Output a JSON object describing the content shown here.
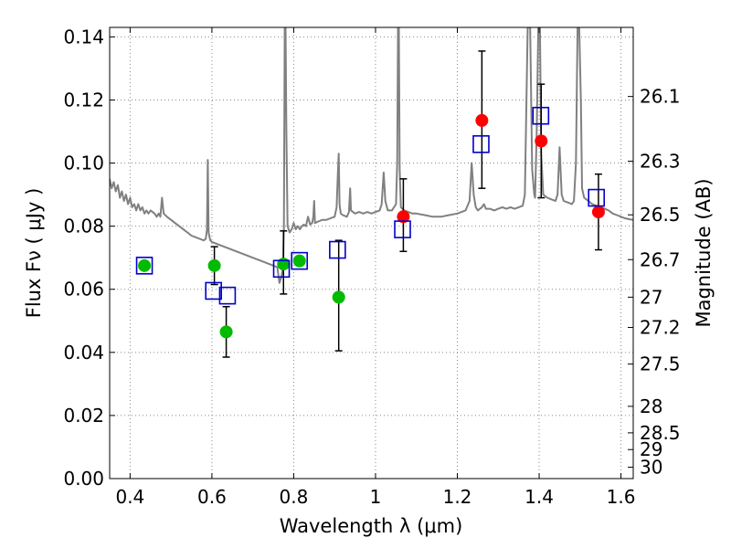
{
  "chart_data": {
    "type": "scatter",
    "title": "",
    "xlabel": "Wavelength  λ (μm)",
    "ylabel": "Flux  Fν  ( μJy )",
    "y2label": "Magnitude (AB)",
    "xlim": [
      0.35,
      1.63
    ],
    "ylim": [
      0.0,
      0.143
    ],
    "grid": true,
    "x_ticks": [
      0.4,
      0.6,
      0.8,
      1.0,
      1.2,
      1.4,
      1.6
    ],
    "x_tick_labels": [
      "0.4",
      "0.6",
      "0.8",
      "1",
      "1.2",
      "1.4",
      "1.6"
    ],
    "y_ticks": [
      0.0,
      0.02,
      0.04,
      0.06,
      0.08,
      0.1,
      0.12,
      0.14
    ],
    "y_tick_labels": [
      "0.00",
      "0.02",
      "0.04",
      "0.06",
      "0.08",
      "0.10",
      "0.12",
      "0.14"
    ],
    "magnitude_ticks": [
      {
        "flux": 0.1211,
        "label": "26.1"
      },
      {
        "flux": 0.1006,
        "label": "26.3"
      },
      {
        "flux": 0.0836,
        "label": "26.5"
      },
      {
        "flux": 0.0694,
        "label": "26.7"
      },
      {
        "flux": 0.0575,
        "label": "27"
      },
      {
        "flux": 0.0479,
        "label": "27.2"
      },
      {
        "flux": 0.0363,
        "label": "27.5"
      },
      {
        "flux": 0.0229,
        "label": "28"
      },
      {
        "flux": 0.0145,
        "label": "28.5"
      },
      {
        "flux": 0.0092,
        "label": "29"
      },
      {
        "flux": 0.0036,
        "label": "30"
      }
    ],
    "colors": {
      "spectrum": "#808080",
      "green_points": "#00bb00",
      "red_points": "#ff0000",
      "model_squares": "#0000cc",
      "error_bars": "#000000",
      "grid": "#888888"
    },
    "series": [
      {
        "kind": "spectrum",
        "points": [
          [
            0.35,
            0.095
          ],
          [
            0.355,
            0.092
          ],
          [
            0.36,
            0.094
          ],
          [
            0.365,
            0.091
          ],
          [
            0.37,
            0.093
          ],
          [
            0.375,
            0.089
          ],
          [
            0.38,
            0.091
          ],
          [
            0.385,
            0.088
          ],
          [
            0.39,
            0.09
          ],
          [
            0.395,
            0.087
          ],
          [
            0.4,
            0.089
          ],
          [
            0.405,
            0.086
          ],
          [
            0.41,
            0.087
          ],
          [
            0.415,
            0.085
          ],
          [
            0.42,
            0.087
          ],
          [
            0.425,
            0.085
          ],
          [
            0.43,
            0.086
          ],
          [
            0.435,
            0.084
          ],
          [
            0.44,
            0.085
          ],
          [
            0.445,
            0.084
          ],
          [
            0.45,
            0.085
          ],
          [
            0.46,
            0.084
          ],
          [
            0.465,
            0.083
          ],
          [
            0.47,
            0.084
          ],
          [
            0.474,
            0.083
          ],
          [
            0.478,
            0.089
          ],
          [
            0.482,
            0.084
          ],
          [
            0.49,
            0.083
          ],
          [
            0.5,
            0.082
          ],
          [
            0.51,
            0.081
          ],
          [
            0.52,
            0.08
          ],
          [
            0.53,
            0.079
          ],
          [
            0.54,
            0.078
          ],
          [
            0.55,
            0.077
          ],
          [
            0.56,
            0.0765
          ],
          [
            0.57,
            0.076
          ],
          [
            0.58,
            0.0755
          ],
          [
            0.585,
            0.076
          ],
          [
            0.588,
            0.079
          ],
          [
            0.59,
            0.101
          ],
          [
            0.592,
            0.078
          ],
          [
            0.596,
            0.0755
          ],
          [
            0.6,
            0.075
          ],
          [
            0.62,
            0.074
          ],
          [
            0.64,
            0.073
          ],
          [
            0.66,
            0.072
          ],
          [
            0.68,
            0.071
          ],
          [
            0.7,
            0.07
          ],
          [
            0.72,
            0.069
          ],
          [
            0.74,
            0.068
          ],
          [
            0.76,
            0.067
          ],
          [
            0.765,
            0.062
          ],
          [
            0.77,
            0.064
          ],
          [
            0.774,
            0.067
          ],
          [
            0.776,
            0.08
          ],
          [
            0.778,
            0.143
          ],
          [
            0.78,
            0.143
          ],
          [
            0.782,
            0.11
          ],
          [
            0.785,
            0.08
          ],
          [
            0.79,
            0.078
          ],
          [
            0.795,
            0.079
          ],
          [
            0.8,
            0.081
          ],
          [
            0.805,
            0.079
          ],
          [
            0.81,
            0.08
          ],
          [
            0.815,
            0.079
          ],
          [
            0.82,
            0.08
          ],
          [
            0.825,
            0.0805
          ],
          [
            0.83,
            0.08
          ],
          [
            0.835,
            0.083
          ],
          [
            0.84,
            0.0805
          ],
          [
            0.845,
            0.081
          ],
          [
            0.848,
            0.083
          ],
          [
            0.85,
            0.088
          ],
          [
            0.852,
            0.081
          ],
          [
            0.86,
            0.0815
          ],
          [
            0.87,
            0.082
          ],
          [
            0.88,
            0.082
          ],
          [
            0.89,
            0.0825
          ],
          [
            0.9,
            0.083
          ],
          [
            0.905,
            0.086
          ],
          [
            0.908,
            0.097
          ],
          [
            0.91,
            0.103
          ],
          [
            0.912,
            0.087
          ],
          [
            0.915,
            0.084
          ],
          [
            0.92,
            0.0835
          ],
          [
            0.93,
            0.083
          ],
          [
            0.935,
            0.0845
          ],
          [
            0.938,
            0.092
          ],
          [
            0.94,
            0.085
          ],
          [
            0.95,
            0.084
          ],
          [
            0.96,
            0.0845
          ],
          [
            0.97,
            0.084
          ],
          [
            0.98,
            0.0845
          ],
          [
            0.99,
            0.084
          ],
          [
            1.0,
            0.0845
          ],
          [
            1.01,
            0.085
          ],
          [
            1.015,
            0.087
          ],
          [
            1.02,
            0.097
          ],
          [
            1.024,
            0.088
          ],
          [
            1.03,
            0.085
          ],
          [
            1.04,
            0.085
          ],
          [
            1.05,
            0.087
          ],
          [
            1.053,
            0.1
          ],
          [
            1.055,
            0.143
          ],
          [
            1.057,
            0.143
          ],
          [
            1.059,
            0.098
          ],
          [
            1.062,
            0.086
          ],
          [
            1.07,
            0.085
          ],
          [
            1.08,
            0.0845
          ],
          [
            1.09,
            0.084
          ],
          [
            1.1,
            0.084
          ],
          [
            1.12,
            0.0835
          ],
          [
            1.14,
            0.083
          ],
          [
            1.16,
            0.083
          ],
          [
            1.18,
            0.0835
          ],
          [
            1.2,
            0.084
          ],
          [
            1.22,
            0.085
          ],
          [
            1.23,
            0.088
          ],
          [
            1.235,
            0.1
          ],
          [
            1.24,
            0.09
          ],
          [
            1.245,
            0.086
          ],
          [
            1.25,
            0.085
          ],
          [
            1.26,
            0.086
          ],
          [
            1.265,
            0.087
          ],
          [
            1.27,
            0.0855
          ],
          [
            1.28,
            0.0855
          ],
          [
            1.29,
            0.085
          ],
          [
            1.3,
            0.0855
          ],
          [
            1.31,
            0.086
          ],
          [
            1.32,
            0.0855
          ],
          [
            1.33,
            0.086
          ],
          [
            1.34,
            0.0855
          ],
          [
            1.35,
            0.086
          ],
          [
            1.36,
            0.0865
          ],
          [
            1.365,
            0.09
          ],
          [
            1.372,
            0.143
          ],
          [
            1.378,
            0.143
          ],
          [
            1.383,
            0.098
          ],
          [
            1.388,
            0.09
          ],
          [
            1.39,
            0.089
          ],
          [
            1.394,
            0.11
          ],
          [
            1.398,
            0.143
          ],
          [
            1.402,
            0.143
          ],
          [
            1.405,
            0.103
          ],
          [
            1.41,
            0.09
          ],
          [
            1.42,
            0.089
          ],
          [
            1.43,
            0.0885
          ],
          [
            1.44,
            0.088
          ],
          [
            1.445,
            0.09
          ],
          [
            1.45,
            0.105
          ],
          [
            1.455,
            0.09
          ],
          [
            1.46,
            0.088
          ],
          [
            1.47,
            0.0875
          ],
          [
            1.48,
            0.087
          ],
          [
            1.485,
            0.088
          ],
          [
            1.49,
            0.1
          ],
          [
            1.494,
            0.143
          ],
          [
            1.498,
            0.143
          ],
          [
            1.502,
            0.12
          ],
          [
            1.505,
            0.092
          ],
          [
            1.51,
            0.089
          ],
          [
            1.52,
            0.088
          ],
          [
            1.53,
            0.087
          ],
          [
            1.54,
            0.0865
          ],
          [
            1.55,
            0.086
          ],
          [
            1.56,
            0.0855
          ],
          [
            1.57,
            0.085
          ],
          [
            1.58,
            0.084
          ],
          [
            1.59,
            0.0835
          ],
          [
            1.6,
            0.083
          ],
          [
            1.61,
            0.0825
          ],
          [
            1.62,
            0.0822
          ],
          [
            1.63,
            0.082
          ]
        ]
      },
      {
        "kind": "observed-green",
        "points": [
          {
            "x": 0.435,
            "y": 0.0675
          },
          {
            "x": 0.606,
            "y": 0.0675,
            "err_low": 0.0615,
            "err_high": 0.0735
          },
          {
            "x": 0.635,
            "y": 0.0465,
            "err_low": 0.0385,
            "err_high": 0.0545
          },
          {
            "x": 0.775,
            "y": 0.068,
            "err_low": 0.0585,
            "err_high": 0.0785
          },
          {
            "x": 0.814,
            "y": 0.069
          },
          {
            "x": 0.91,
            "y": 0.0575,
            "err_low": 0.0405,
            "err_high": 0.0755
          }
        ]
      },
      {
        "kind": "observed-red",
        "points": [
          {
            "x": 1.068,
            "y": 0.083,
            "err_low": 0.072,
            "err_high": 0.095
          },
          {
            "x": 1.26,
            "y": 0.1135,
            "err_low": 0.092,
            "err_high": 0.1355
          },
          {
            "x": 1.405,
            "y": 0.107,
            "err_low": 0.089,
            "err_high": 0.125
          },
          {
            "x": 1.545,
            "y": 0.0845,
            "err_low": 0.0725,
            "err_high": 0.0965
          }
        ]
      },
      {
        "kind": "model-squares",
        "points": [
          {
            "x": 0.435,
            "y": 0.0675
          },
          {
            "x": 0.604,
            "y": 0.0595
          },
          {
            "x": 0.638,
            "y": 0.058
          },
          {
            "x": 0.77,
            "y": 0.0665
          },
          {
            "x": 0.814,
            "y": 0.069
          },
          {
            "x": 0.907,
            "y": 0.0725
          },
          {
            "x": 1.066,
            "y": 0.079
          },
          {
            "x": 1.258,
            "y": 0.106
          },
          {
            "x": 1.404,
            "y": 0.115
          },
          {
            "x": 1.54,
            "y": 0.089
          }
        ]
      }
    ]
  }
}
